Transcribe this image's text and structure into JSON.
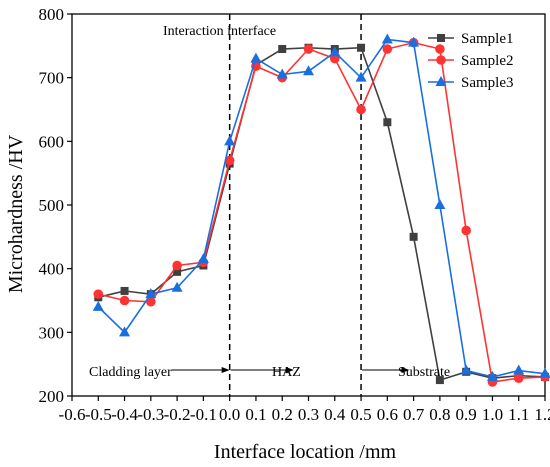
{
  "chart_data": {
    "type": "line",
    "xlabel": "Interface location /mm",
    "ylabel": "Microhardness /HV",
    "xlim": [
      -0.6,
      1.2
    ],
    "ylim": [
      200,
      800
    ],
    "xticks": [
      -0.6,
      -0.5,
      -0.4,
      -0.3,
      -0.2,
      -0.1,
      0.0,
      0.1,
      0.2,
      0.3,
      0.4,
      0.5,
      0.6,
      0.7,
      0.8,
      0.9,
      1.0,
      1.1,
      1.2
    ],
    "xtick_labels": [
      "-0.6",
      "-0.5",
      "-0.4",
      "-0.3",
      "-0.2",
      "-0.1",
      "0.0",
      "0.1",
      "0.2",
      "0.3",
      "0.4",
      "0.5",
      "0.6",
      "0.7",
      "0.8",
      "0.9",
      "1.0",
      "1.1",
      "1.2"
    ],
    "yticks": [
      200,
      300,
      400,
      500,
      600,
      700,
      800
    ],
    "ytick_labels": [
      "200",
      "300",
      "400",
      "500",
      "600",
      "700",
      "800"
    ],
    "grid": false,
    "legend_position": "top-right",
    "series": [
      {
        "name": "Sample1",
        "color": "#404040",
        "marker": "square",
        "x": [
          -0.5,
          -0.4,
          -0.3,
          -0.2,
          -0.1,
          0.0,
          0.1,
          0.2,
          0.3,
          0.4,
          0.5,
          0.6,
          0.7,
          0.8,
          0.9,
          1.0,
          1.1,
          1.2
        ],
        "y": [
          355,
          365,
          360,
          395,
          405,
          565,
          720,
          745,
          747,
          745,
          747,
          630,
          450,
          225,
          238,
          228,
          232,
          230
        ]
      },
      {
        "name": "Sample2",
        "color": "#ff3333",
        "marker": "circle",
        "x": [
          -0.5,
          -0.4,
          -0.3,
          -0.2,
          -0.1,
          0.0,
          0.1,
          0.2,
          0.3,
          0.4,
          0.5,
          0.6,
          0.7,
          0.8,
          0.9,
          1.0,
          1.1,
          1.2
        ],
        "y": [
          360,
          350,
          348,
          405,
          410,
          570,
          718,
          700,
          745,
          730,
          650,
          745,
          755,
          745,
          460,
          222,
          228,
          230
        ]
      },
      {
        "name": "Sample3",
        "color": "#1a6fe0",
        "marker": "triangle",
        "x": [
          -0.5,
          -0.4,
          -0.3,
          -0.2,
          -0.1,
          0.0,
          0.1,
          0.2,
          0.3,
          0.4,
          0.5,
          0.6,
          0.7,
          0.8,
          0.9,
          1.0,
          1.1,
          1.2
        ],
        "y": [
          340,
          300,
          360,
          370,
          415,
          600,
          730,
          705,
          710,
          740,
          700,
          760,
          755,
          500,
          240,
          230,
          240,
          235
        ]
      }
    ],
    "vlines": [
      0.0,
      0.5
    ],
    "annotations": {
      "top": "Interaction interface",
      "cladding": "Cladding layer",
      "haz": "HAZ",
      "substrate": "Substrate"
    }
  }
}
